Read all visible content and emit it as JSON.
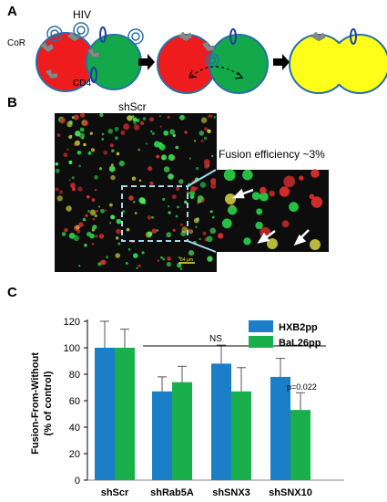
{
  "panels": {
    "a": {
      "letter": "A",
      "labels": {
        "hiv": "HIV",
        "cor": "CoR",
        "cd4": "CD4"
      }
    },
    "b": {
      "letter": "B",
      "condition": "shScr",
      "fusion_efficiency": "Fusion efficiency ~3%",
      "scale_bar": "64 µm"
    },
    "c": {
      "letter": "C"
    }
  },
  "colors": {
    "cell_red": "#ee1c1c",
    "cell_green": "#13a84a",
    "cell_yellow": "#ffff1a",
    "hxb2": "#1a7fc6",
    "bal26": "#19b04b",
    "dash_box": "#a6d9e8"
  },
  "chart_data": {
    "type": "bar",
    "categories": [
      "shScr",
      "shRab5A",
      "shSNX3",
      "shSNX10"
    ],
    "series": [
      {
        "name": "HXB2pp",
        "values": [
          100,
          67,
          88,
          78
        ],
        "errors": [
          20,
          11,
          14,
          14
        ]
      },
      {
        "name": "BaL26pp",
        "values": [
          100,
          74,
          67,
          53
        ],
        "errors": [
          14,
          12,
          18,
          13
        ]
      }
    ],
    "ylabel": "Fusion-From-Without\n(% of control)",
    "ylim": [
      0,
      120
    ],
    "yticks": [
      "0",
      "20",
      "40",
      "60",
      "80",
      "100",
      "120"
    ],
    "legend": "top-right",
    "annotations": {
      "ns": "NS",
      "p_value": "p=0.022"
    }
  }
}
